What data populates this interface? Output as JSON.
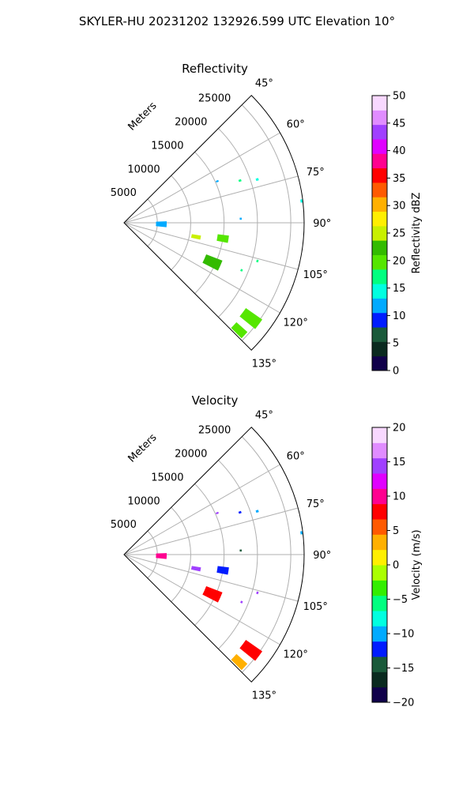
{
  "figure": {
    "suptitle": "SKYLER-HU  20231202  132926.599 UTC Elevation 10°"
  },
  "chart_data": [
    {
      "type": "polar-sector",
      "title": "Reflectivity",
      "radial_label": "Meters",
      "theta_range_deg": [
        45,
        135
      ],
      "theta_ticks": [
        "45°",
        "60°",
        "75°",
        "90°",
        "105°",
        "120°",
        "135°"
      ],
      "theta_tick_values": [
        45,
        60,
        75,
        90,
        105,
        120,
        135
      ],
      "r_max": 27000,
      "r_grid": [
        5000,
        10000,
        15000,
        20000,
        25000
      ],
      "r_tick_labels": [
        "5000",
        "10000",
        "15000",
        "20000",
        "25000"
      ],
      "grid": true,
      "colorbar": {
        "label": "Reflectivity dBZ",
        "min": 0,
        "max": 50,
        "ticks": [
          0,
          5,
          10,
          15,
          20,
          25,
          30,
          35,
          40,
          45,
          50
        ],
        "tick_labels": [
          "0",
          "5",
          "10",
          "15",
          "20",
          "25",
          "30",
          "35",
          "40",
          "45",
          "50"
        ]
      },
      "echoes": [
        {
          "theta": 92,
          "r": 5600,
          "dtheta": 8,
          "dr": 1600,
          "value": 11
        },
        {
          "theta": 101,
          "r": 11000,
          "dtheta": 3,
          "dr": 1400,
          "value": 24
        },
        {
          "theta": 99,
          "r": 15000,
          "dtheta": 4,
          "dr": 1700,
          "value": 20
        },
        {
          "theta": 114,
          "r": 14500,
          "dtheta": 6,
          "dr": 2600,
          "value": 22
        },
        {
          "theta": 127,
          "r": 23800,
          "dtheta": 4,
          "dr": 3000,
          "value": 20
        },
        {
          "theta": 133,
          "r": 23600,
          "dtheta": 3,
          "dr": 2200,
          "value": 19
        },
        {
          "theta": 66,
          "r": 15300,
          "dtheta": 1,
          "dr": 400,
          "value": 13
        },
        {
          "theta": 70,
          "r": 18500,
          "dtheta": 1,
          "dr": 400,
          "value": 17
        },
        {
          "theta": 72,
          "r": 21000,
          "dtheta": 1,
          "dr": 400,
          "value": 15
        },
        {
          "theta": 83,
          "r": 26800,
          "dtheta": 1,
          "dr": 300,
          "value": 14
        },
        {
          "theta": 88,
          "r": 17500,
          "dtheta": 1,
          "dr": 300,
          "value": 13
        },
        {
          "theta": 106,
          "r": 20800,
          "dtheta": 1,
          "dr": 300,
          "value": 16
        },
        {
          "theta": 112,
          "r": 19000,
          "dtheta": 1,
          "dr": 300,
          "value": 18
        }
      ]
    },
    {
      "type": "polar-sector",
      "title": "Velocity",
      "radial_label": "Meters",
      "theta_range_deg": [
        45,
        135
      ],
      "theta_ticks": [
        "45°",
        "60°",
        "75°",
        "90°",
        "105°",
        "120°",
        "135°"
      ],
      "theta_tick_values": [
        45,
        60,
        75,
        90,
        105,
        120,
        135
      ],
      "r_max": 27000,
      "r_grid": [
        5000,
        10000,
        15000,
        20000,
        25000
      ],
      "r_tick_labels": [
        "5000",
        "10000",
        "15000",
        "20000",
        "25000"
      ],
      "grid": true,
      "colorbar": {
        "label": "Velocity (m/s)",
        "min": -20,
        "max": 20,
        "ticks": [
          -20,
          -15,
          -10,
          -5,
          0,
          5,
          10,
          15,
          20
        ],
        "tick_labels": [
          "−20",
          "−15",
          "−10",
          "−5",
          "0",
          "5",
          "10",
          "15",
          "20"
        ]
      },
      "echoes": [
        {
          "theta": 92,
          "r": 5600,
          "dtheta": 8,
          "dr": 1600,
          "value": 10
        },
        {
          "theta": 101,
          "r": 11000,
          "dtheta": 3,
          "dr": 1400,
          "value": 14
        },
        {
          "theta": 99,
          "r": 15000,
          "dtheta": 4,
          "dr": 1700,
          "value": -12
        },
        {
          "theta": 114,
          "r": 14500,
          "dtheta": 6,
          "dr": 2600,
          "value": 7
        },
        {
          "theta": 127,
          "r": 23800,
          "dtheta": 4,
          "dr": 3000,
          "value": 8
        },
        {
          "theta": 133,
          "r": 23600,
          "dtheta": 3,
          "dr": 2200,
          "value": 3
        },
        {
          "theta": 66,
          "r": 15300,
          "dtheta": 1,
          "dr": 400,
          "value": 14
        },
        {
          "theta": 70,
          "r": 18500,
          "dtheta": 1,
          "dr": 400,
          "value": -12
        },
        {
          "theta": 72,
          "r": 21000,
          "dtheta": 1,
          "dr": 400,
          "value": -11
        },
        {
          "theta": 83,
          "r": 26800,
          "dtheta": 1,
          "dr": 300,
          "value": -10
        },
        {
          "theta": 88,
          "r": 17500,
          "dtheta": 1,
          "dr": 300,
          "value": -15
        },
        {
          "theta": 106,
          "r": 20800,
          "dtheta": 1,
          "dr": 300,
          "value": 15
        },
        {
          "theta": 112,
          "r": 19000,
          "dtheta": 1,
          "dr": 300,
          "value": 14
        }
      ]
    }
  ],
  "colormaps": {
    "reflectivity": [
      "#10004a",
      "#0a2a1f",
      "#1a5a3a",
      "#001cff",
      "#00aaff",
      "#00ffe0",
      "#00ff80",
      "#55e600",
      "#33bb00",
      "#c8f000",
      "#ffef00",
      "#ffb000",
      "#ff5a00",
      "#ff0000",
      "#ff0090",
      "#e000ff",
      "#a040ff",
      "#e08cff",
      "#f8d8ff"
    ],
    "velocity": [
      "#10004a",
      "#0a2a1f",
      "#1a5a3a",
      "#001cff",
      "#00aaff",
      "#00ffe0",
      "#00ff80",
      "#33ee00",
      "#aaff00",
      "#ffef00",
      "#ffb000",
      "#ff5a00",
      "#ff0000",
      "#ff0090",
      "#e000ff",
      "#a040ff",
      "#e08cff",
      "#f8d8ff"
    ]
  }
}
